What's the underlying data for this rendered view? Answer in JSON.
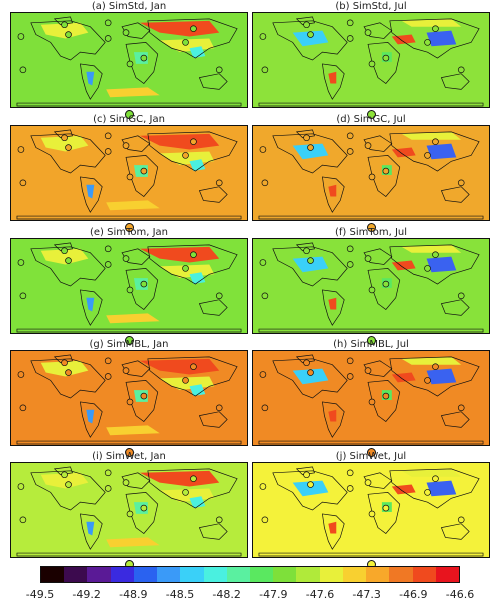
{
  "panels": [
    {
      "title": "(a)  SimStd, Jan",
      "background": "#7fe03a",
      "month": "jan"
    },
    {
      "title": "(b)  SimStd, Jul",
      "background": "#8de23a",
      "month": "jul"
    },
    {
      "title": "(c)  SimGC, Jan",
      "background": "#f2a52a",
      "month": "jan"
    },
    {
      "title": "(d)  SimGC, Jul",
      "background": "#f0a82c",
      "month": "jul"
    },
    {
      "title": "(e)  SimTom, Jan",
      "background": "#80e23a",
      "month": "jan"
    },
    {
      "title": "(f)  SimTom, Jul",
      "background": "#88e23a",
      "month": "jul"
    },
    {
      "title": "(g)  SimMBL, Jan",
      "background": "#f08a24",
      "month": "jan"
    },
    {
      "title": "(h)  SimMBL, Jul",
      "background": "#f08a24",
      "month": "jul"
    },
    {
      "title": "(i)  SimWet, Jan",
      "background": "#b6ec3c",
      "month": "jan"
    },
    {
      "title": "(j)  SimWet, Jul",
      "background": "#f4f23a",
      "month": "jul"
    }
  ],
  "colorbar": {
    "colors": [
      "#1a0000",
      "#3c0a4e",
      "#5a1a96",
      "#3a2ae0",
      "#2a62f0",
      "#3a9af8",
      "#3ad0f8",
      "#4af0e0",
      "#5af0a0",
      "#5ae860",
      "#7ee03a",
      "#b0ea3a",
      "#e8f03a",
      "#f8d030",
      "#f8a82a",
      "#f07824",
      "#f04a1e",
      "#e8141e"
    ],
    "tick_labels": [
      "-49.5",
      "-49.2",
      "-48.9",
      "-48.5",
      "-48.2",
      "-47.9",
      "-47.6",
      "-47.3",
      "-46.9",
      "-46.6"
    ]
  }
}
